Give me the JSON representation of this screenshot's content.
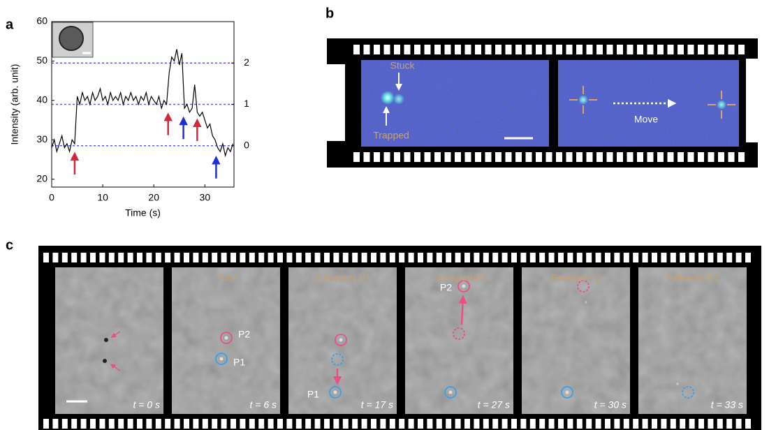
{
  "chart_data": {
    "type": "line",
    "ylabel": "Intensity (arb. unit)",
    "xlabel": "Time (s)",
    "x": [
      0,
      0.5,
      1,
      1.5,
      2,
      2.5,
      3,
      3.5,
      4,
      4.5,
      5,
      5.5,
      6,
      6.5,
      7,
      7.5,
      8,
      8.5,
      9,
      9.5,
      10,
      10.5,
      11,
      11.5,
      12,
      12.5,
      13,
      13.5,
      14,
      14.5,
      15,
      15.5,
      16,
      16.5,
      17,
      17.5,
      18,
      18.5,
      19,
      19.5,
      20,
      20.5,
      21,
      21.5,
      22,
      22.5,
      23,
      23.5,
      24,
      24.5,
      25,
      25.5,
      26,
      26.5,
      27,
      27.5,
      28,
      28.5,
      29,
      29.5,
      30,
      30.5,
      31,
      31.5,
      32,
      32.5,
      33,
      33.5,
      34,
      34.5,
      35,
      35.5
    ],
    "values": [
      28,
      30,
      27,
      29,
      31,
      28,
      29,
      27,
      30,
      29,
      41,
      39,
      42,
      40,
      41,
      39,
      42,
      40,
      41,
      43,
      40,
      41,
      39,
      42,
      40,
      41,
      40,
      42,
      39,
      41,
      40,
      42,
      40,
      41,
      39,
      41,
      40,
      42,
      39,
      41,
      40,
      39,
      41,
      38,
      40,
      39,
      47,
      51,
      50,
      53,
      49,
      52,
      38,
      39,
      37,
      38,
      44,
      37,
      36,
      37,
      35,
      33,
      34,
      31,
      30,
      28,
      27,
      29,
      26,
      28,
      27,
      29
    ],
    "color": "#000000",
    "xlim": [
      0,
      35.7
    ],
    "xticks": [
      0,
      10,
      20,
      30
    ],
    "ylim": [
      18,
      60
    ],
    "yticks": [
      20,
      30,
      40,
      50,
      60
    ],
    "y2lim": [
      -1,
      3
    ],
    "y2ticks": [
      0,
      1,
      2
    ],
    "y2grid": true,
    "y2grid_color": "#5b5bf0",
    "arrows": [
      {
        "x": 4.5,
        "y": 26.5,
        "color": "#d0283c"
      },
      {
        "x": 22.8,
        "y": 36.5,
        "color": "#d0283c"
      },
      {
        "x": 25.8,
        "y": 35.5,
        "color": "#1f2fd0"
      },
      {
        "x": 28.5,
        "y": 35,
        "color": "#d0283c"
      },
      {
        "x": 32.2,
        "y": 25.5,
        "color": "#1f2fd0"
      }
    ]
  },
  "panel_labels": [
    "a",
    "b",
    "c"
  ],
  "panel_b": {
    "stuck": "Stuck",
    "trapped": "Trapped",
    "move": "Move"
  },
  "panel_c": {
    "frames": [
      {
        "time": "t = 0 s"
      },
      {
        "title": "Trap",
        "time": "t = 6 s",
        "labels": [
          "P2",
          "P1"
        ]
      },
      {
        "title": "Transport P1",
        "time": "t = 17 s",
        "labels": [
          "P1"
        ]
      },
      {
        "title": "Transport P2",
        "time": "t = 27 s",
        "labels": [
          "P2"
        ]
      },
      {
        "title": "Release P2",
        "time": "t = 30 s"
      },
      {
        "title": "Release P1",
        "time": "t = 33 s"
      }
    ]
  }
}
